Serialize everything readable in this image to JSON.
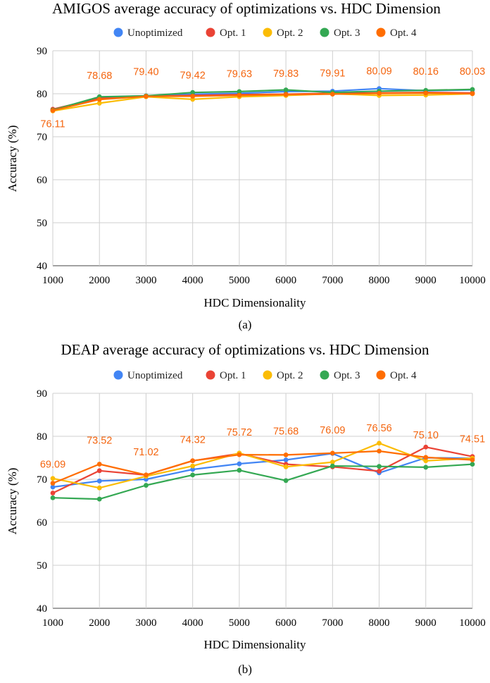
{
  "chart_data": [
    {
      "type": "line",
      "title": "AMIGOS average accuracy of optimizations vs. HDC Dimension",
      "xlabel": "HDC Dimensionality",
      "ylabel": "Accuracy (%)",
      "caption": "(a)",
      "ylim": [
        40,
        90
      ],
      "yticks": [
        40,
        50,
        60,
        70,
        80,
        90
      ],
      "grid": true,
      "legend_position": "top",
      "categories": [
        "1000",
        "2000",
        "3000",
        "4000",
        "5000",
        "6000",
        "7000",
        "8000",
        "9000",
        "10000"
      ],
      "series": [
        {
          "name": "Unoptimized",
          "color": "#4285f4",
          "values": [
            76.2,
            79.2,
            79.5,
            79.9,
            80.1,
            80.5,
            80.6,
            81.2,
            80.7,
            80.9
          ]
        },
        {
          "name": "Opt. 1",
          "color": "#ea4335",
          "values": [
            76.4,
            79.0,
            79.4,
            79.6,
            79.8,
            79.9,
            80.1,
            80.2,
            80.3,
            80.2
          ]
        },
        {
          "name": "Opt. 2",
          "color": "#fbbc04",
          "values": [
            76.0,
            77.8,
            79.3,
            78.7,
            79.3,
            79.6,
            80.0,
            79.6,
            79.7,
            80.0
          ]
        },
        {
          "name": "Opt. 3",
          "color": "#34a853",
          "values": [
            76.2,
            79.3,
            79.5,
            80.3,
            80.5,
            80.9,
            80.3,
            80.6,
            80.8,
            81.0
          ]
        },
        {
          "name": "Opt. 4",
          "color": "#ff6d01",
          "values": [
            76.11,
            78.68,
            79.4,
            79.42,
            79.63,
            79.83,
            79.91,
            80.09,
            80.16,
            80.03
          ]
        }
      ],
      "data_labels": [
        "76.11",
        "78.68",
        "79.40",
        "79.42",
        "79.63",
        "79.83",
        "79.91",
        "80.09",
        "80.16",
        "80.03"
      ]
    },
    {
      "type": "line",
      "title": "DEAP average accuracy of optimizations vs. HDC Dimension",
      "xlabel": "HDC Dimensionality",
      "ylabel": "Accuracy (%)",
      "caption": "(b)",
      "ylim": [
        40,
        90
      ],
      "yticks": [
        40,
        50,
        60,
        70,
        80,
        90
      ],
      "grid": true,
      "legend_position": "top",
      "categories": [
        "1000",
        "2000",
        "3000",
        "4000",
        "5000",
        "6000",
        "7000",
        "8000",
        "9000",
        "10000"
      ],
      "series": [
        {
          "name": "Unoptimized",
          "color": "#4285f4",
          "values": [
            68.2,
            69.6,
            70.0,
            72.3,
            73.6,
            74.5,
            76.0,
            71.5,
            75.0,
            74.9
          ]
        },
        {
          "name": "Opt. 1",
          "color": "#ea4335",
          "values": [
            66.8,
            72.0,
            71.0,
            74.3,
            76.0,
            73.5,
            72.9,
            71.9,
            77.5,
            75.3
          ]
        },
        {
          "name": "Opt. 2",
          "color": "#fbbc04",
          "values": [
            70.2,
            68.0,
            70.7,
            73.1,
            76.1,
            72.9,
            74.0,
            78.4,
            74.3,
            74.9
          ]
        },
        {
          "name": "Opt. 3",
          "color": "#34a853",
          "values": [
            65.7,
            65.4,
            68.6,
            71.0,
            72.1,
            69.7,
            73.1,
            73.0,
            72.8,
            73.5
          ]
        },
        {
          "name": "Opt. 4",
          "color": "#ff6d01",
          "values": [
            69.09,
            73.52,
            71.02,
            74.32,
            75.72,
            75.68,
            76.09,
            76.56,
            75.1,
            74.51
          ]
        }
      ],
      "data_labels": [
        "69.09",
        "73.52",
        "71.02",
        "74.32",
        "75.72",
        "75.68",
        "76.09",
        "76.56",
        "75.10",
        "74.51"
      ]
    }
  ]
}
